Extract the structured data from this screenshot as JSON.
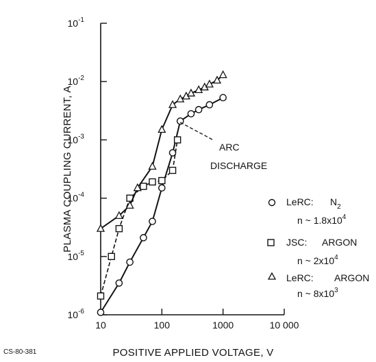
{
  "figure_id": "CS-80-381",
  "chart_data": {
    "type": "line",
    "xlabel": "POSITIVE APPLIED VOLTAGE, V",
    "ylabel": "PLASMA COUPLING CURRENT, A",
    "xscale": "log",
    "yscale": "log",
    "xlim": [
      10,
      10000
    ],
    "ylim": [
      1e-06,
      0.1
    ],
    "x_tick_labels": [
      "10",
      "100",
      "1000",
      "10 000"
    ],
    "y_tick_labels": [
      {
        "base": "10",
        "exp": "-6"
      },
      {
        "base": "10",
        "exp": "-5"
      },
      {
        "base": "10",
        "exp": "-4"
      },
      {
        "base": "10",
        "exp": "-3"
      },
      {
        "base": "10",
        "exp": "-2"
      },
      {
        "base": "10",
        "exp": "-1"
      }
    ],
    "grid": false,
    "legend_position": "right",
    "series": [
      {
        "legend_label": "LeRC:",
        "legend_gas": "N",
        "legend_gas_sub": "2",
        "legend_n_base": "n ~ 1.8x10",
        "legend_n_exp": "4",
        "marker": "circle",
        "line": "solid",
        "x": [
          10,
          20,
          30,
          50,
          70,
          100,
          150,
          200,
          300,
          400,
          600,
          1000
        ],
        "y": [
          1.1e-06,
          3.5e-06,
          8e-06,
          2.1e-05,
          4e-05,
          0.00015,
          0.0006,
          0.0021,
          0.0028,
          0.0033,
          0.004,
          0.0053
        ]
      },
      {
        "legend_label": "JSC:",
        "legend_gas": "ARGON",
        "legend_n_base": "n ~ 2x10",
        "legend_n_exp": "4",
        "marker": "square",
        "line": "dashed",
        "x": [
          10,
          15,
          20,
          30,
          50,
          70,
          100,
          150,
          180
        ],
        "y": [
          2.1e-06,
          1e-05,
          3e-05,
          0.0001,
          0.00016,
          0.00019,
          0.0002,
          0.0003,
          0.001
        ]
      },
      {
        "legend_label": "LeRC:",
        "legend_gas": "ARGON",
        "legend_n_base": "n ~ 8x10",
        "legend_n_exp": "3",
        "marker": "triangle",
        "line": "solid",
        "x": [
          10,
          20,
          30,
          40,
          70,
          100,
          150,
          200,
          250,
          300,
          400,
          500,
          600,
          800,
          1000
        ],
        "y": [
          3e-05,
          5e-05,
          7.5e-05,
          0.00015,
          0.00035,
          0.0015,
          0.004,
          0.005,
          0.0056,
          0.0063,
          0.0072,
          0.008,
          0.009,
          0.0105,
          0.013
        ]
      }
    ],
    "annotation": {
      "lines": [
        "ARC",
        "DISCHARGE"
      ],
      "points_to": {
        "x": 200,
        "y": 0.002
      }
    }
  }
}
